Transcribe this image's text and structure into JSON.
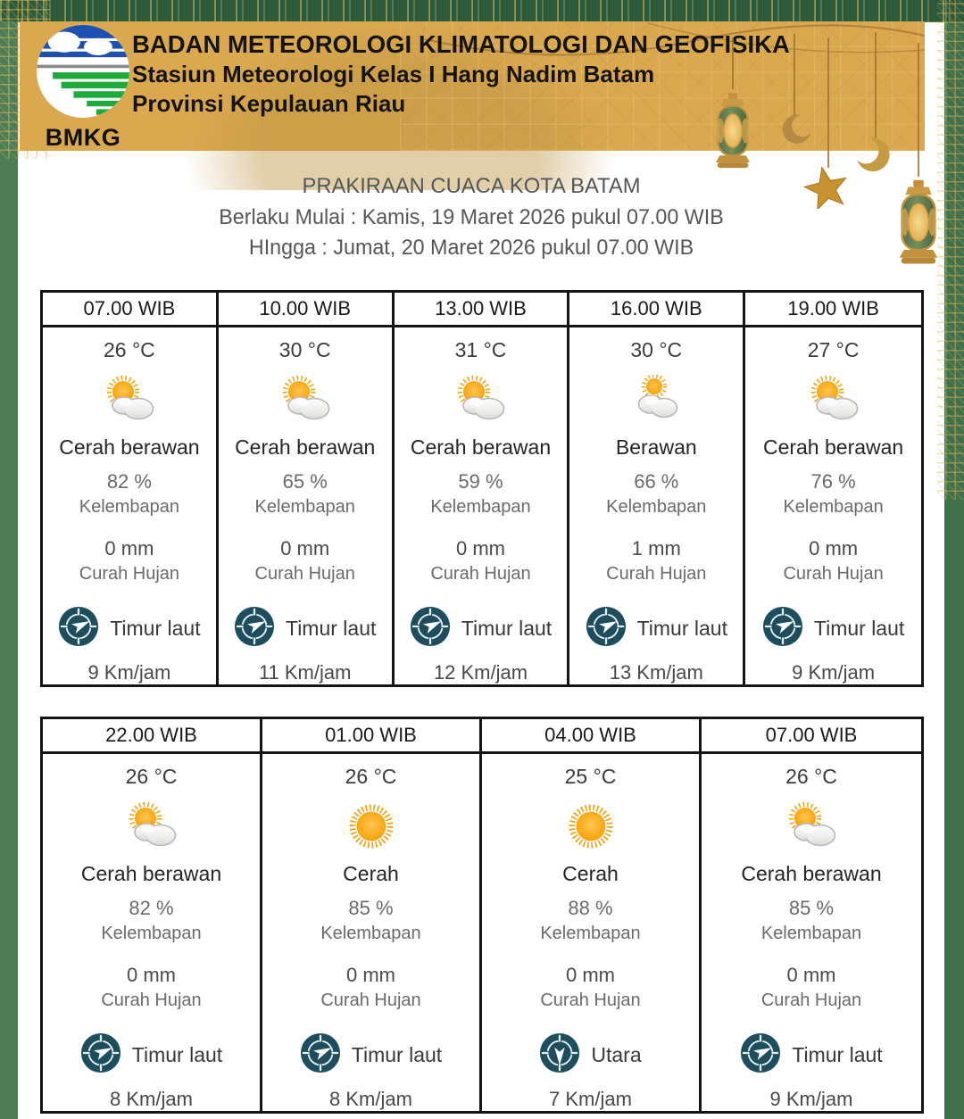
{
  "header": {
    "logo_text": "BMKG",
    "org_line1": "BADAN METEOROLOGI KLIMATOLOGI DAN GEOFISIKA",
    "org_line2": "Stasiun Meteorologi Kelas I Hang Nadim Batam",
    "org_line3": "Provinsi Kepulauan Riau"
  },
  "title": {
    "line1": "PRAKIRAAN CUACA KOTA BATAM",
    "line2": "Berlaku Mulai : Kamis, 19 Maret 2026 pukul 07.00 WIB",
    "line3": "HIngga : Jumat, 20 Maret 2026 pukul 07.00 WIB"
  },
  "labels": {
    "humidity": "Kelembapan",
    "rain": "Curah Hujan"
  },
  "colors": {
    "gold_band": "#DAA84F",
    "frame_green": "#4E7D55",
    "compass_teal": "#1E4D5E",
    "sun_orange": "#F6A713",
    "table_border": "#141414"
  },
  "tables": [
    {
      "columns": [
        {
          "time": "07.00 WIB",
          "temp": "26 °C",
          "icon": "cerah-berawan",
          "condition": "Cerah berawan",
          "humidity": "82 %",
          "rain": "0 mm",
          "wind_dir": "Timur laut",
          "wind_speed": "9 Km/jam"
        },
        {
          "time": "10.00 WIB",
          "temp": "30 °C",
          "icon": "cerah-berawan",
          "condition": "Cerah berawan",
          "humidity": "65 %",
          "rain": "0 mm",
          "wind_dir": "Timur laut",
          "wind_speed": "11 Km/jam"
        },
        {
          "time": "13.00 WIB",
          "temp": "31 °C",
          "icon": "cerah-berawan",
          "condition": "Cerah berawan",
          "humidity": "59 %",
          "rain": "0 mm",
          "wind_dir": "Timur laut",
          "wind_speed": "12 Km/jam"
        },
        {
          "time": "16.00 WIB",
          "temp": "30 °C",
          "icon": "berawan",
          "condition": "Berawan",
          "humidity": "66 %",
          "rain": "1 mm",
          "wind_dir": "Timur laut",
          "wind_speed": "13 Km/jam"
        },
        {
          "time": "19.00 WIB",
          "temp": "27 °C",
          "icon": "cerah-berawan",
          "condition": "Cerah berawan",
          "humidity": "76 %",
          "rain": "0 mm",
          "wind_dir": "Timur laut",
          "wind_speed": "9 Km/jam"
        }
      ]
    },
    {
      "columns": [
        {
          "time": "22.00 WIB",
          "temp": "26 °C",
          "icon": "cerah-berawan",
          "condition": "Cerah berawan",
          "humidity": "82 %",
          "rain": "0 mm",
          "wind_dir": "Timur laut",
          "wind_speed": "8 Km/jam"
        },
        {
          "time": "01.00 WIB",
          "temp": "26 °C",
          "icon": "cerah",
          "condition": "Cerah",
          "humidity": "85 %",
          "rain": "0 mm",
          "wind_dir": "Timur laut",
          "wind_speed": "8 Km/jam"
        },
        {
          "time": "04.00 WIB",
          "temp": "25 °C",
          "icon": "cerah",
          "condition": "Cerah",
          "humidity": "88 %",
          "rain": "0 mm",
          "wind_dir": "Utara",
          "wind_speed": "7 Km/jam"
        },
        {
          "time": "07.00 WIB",
          "temp": "26 °C",
          "icon": "cerah-berawan",
          "condition": "Cerah berawan",
          "humidity": "85 %",
          "rain": "0 mm",
          "wind_dir": "Timur laut",
          "wind_speed": "9 Km/jam"
        }
      ]
    }
  ]
}
